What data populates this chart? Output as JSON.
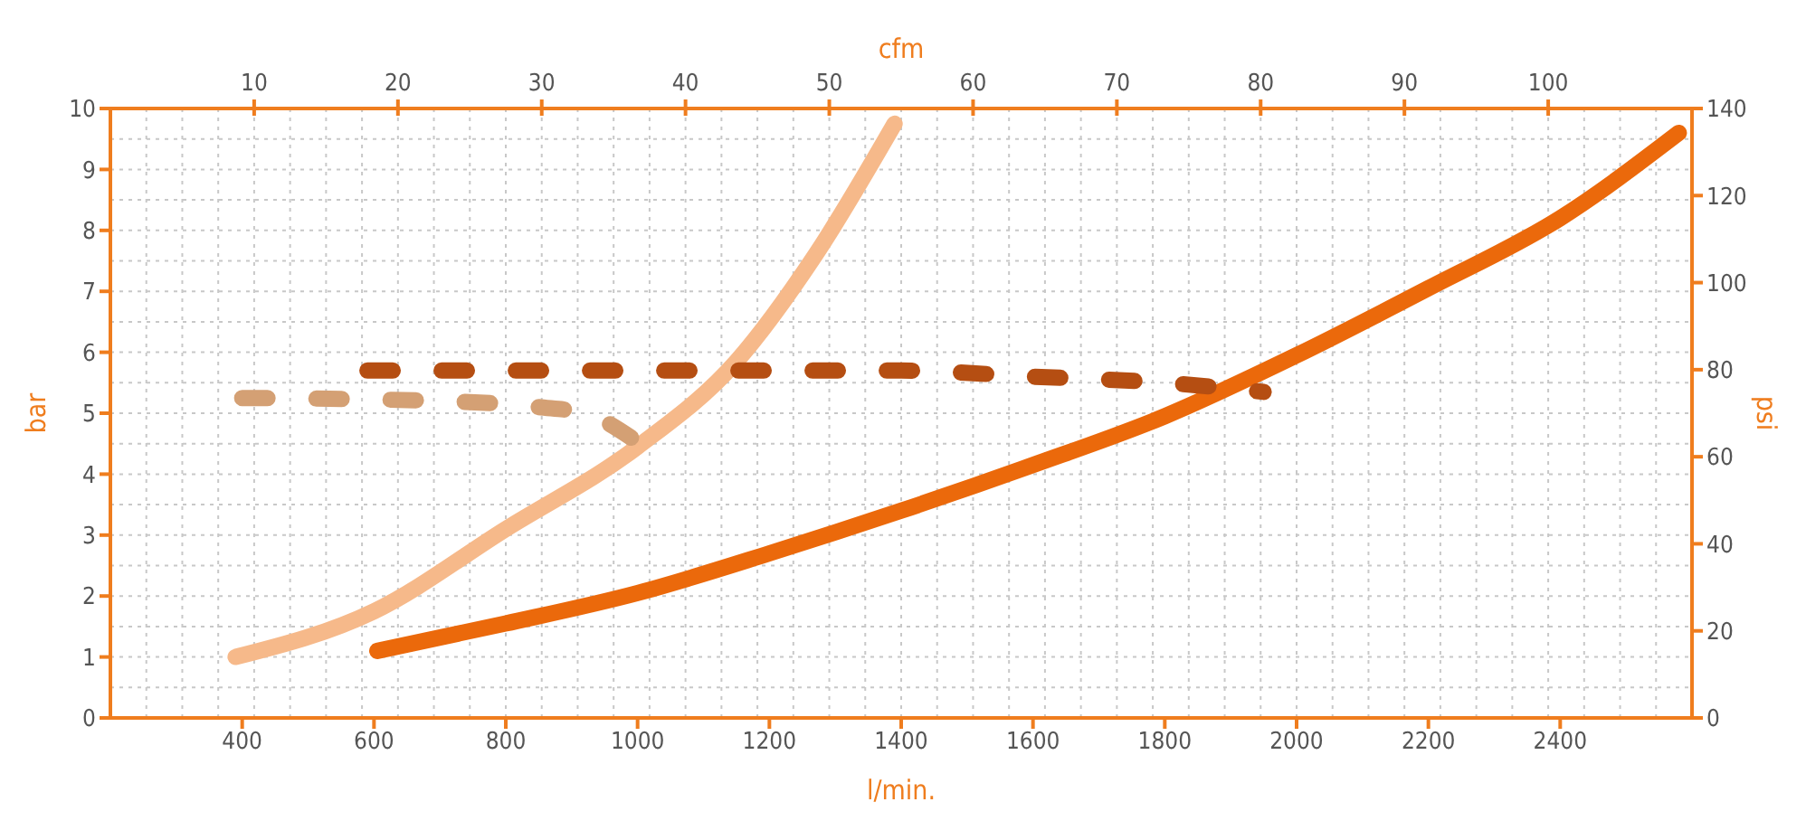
{
  "chart_data": {
    "type": "line",
    "xlabel": "l/min.",
    "x2label": "cfm",
    "ylabel": "bar",
    "y2label": "psi",
    "xlim": [
      200,
      2600
    ],
    "xticks": [
      400,
      600,
      800,
      1000,
      1200,
      1400,
      1600,
      1800,
      2000,
      2200,
      2400
    ],
    "x2lim": [
      0,
      110
    ],
    "x2ticks": [
      10,
      20,
      30,
      40,
      50,
      60,
      70,
      80,
      90,
      100
    ],
    "ylim": [
      0,
      10
    ],
    "yticks": [
      0,
      1,
      2,
      3,
      4,
      5,
      6,
      7,
      8,
      9,
      10
    ],
    "y2lim": [
      0,
      140
    ],
    "y2ticks": [
      0,
      20,
      40,
      60,
      80,
      100,
      120,
      140
    ],
    "grid": true,
    "marker": "none",
    "series": [
      {
        "color": "#f6b98a",
        "line_style": "solid",
        "x": [
          390,
          600,
          800,
          1000,
          1150,
          1270,
          1390
        ],
        "values": [
          1.0,
          1.75,
          3.1,
          4.45,
          5.85,
          7.6,
          9.75
        ]
      },
      {
        "color": "#eb690b",
        "line_style": "solid",
        "x": [
          605,
          800,
          1000,
          1200,
          1400,
          1600,
          1800,
          2000,
          2200,
          2400,
          2580
        ],
        "values": [
          1.1,
          1.55,
          2.05,
          2.7,
          3.4,
          4.15,
          4.95,
          5.95,
          7.05,
          8.2,
          9.6
        ]
      },
      {
        "color": "#b54e12",
        "line_style": "dashed",
        "x": [
          590,
          1000,
          1400,
          1600,
          1800,
          1950
        ],
        "values": [
          5.7,
          5.7,
          5.7,
          5.6,
          5.5,
          5.35
        ]
      },
      {
        "color": "#d4a074",
        "line_style": "dashed",
        "x": [
          400,
          700,
          850,
          920,
          990
        ],
        "values": [
          5.25,
          5.2,
          5.1,
          5.0,
          4.6
        ]
      }
    ]
  }
}
